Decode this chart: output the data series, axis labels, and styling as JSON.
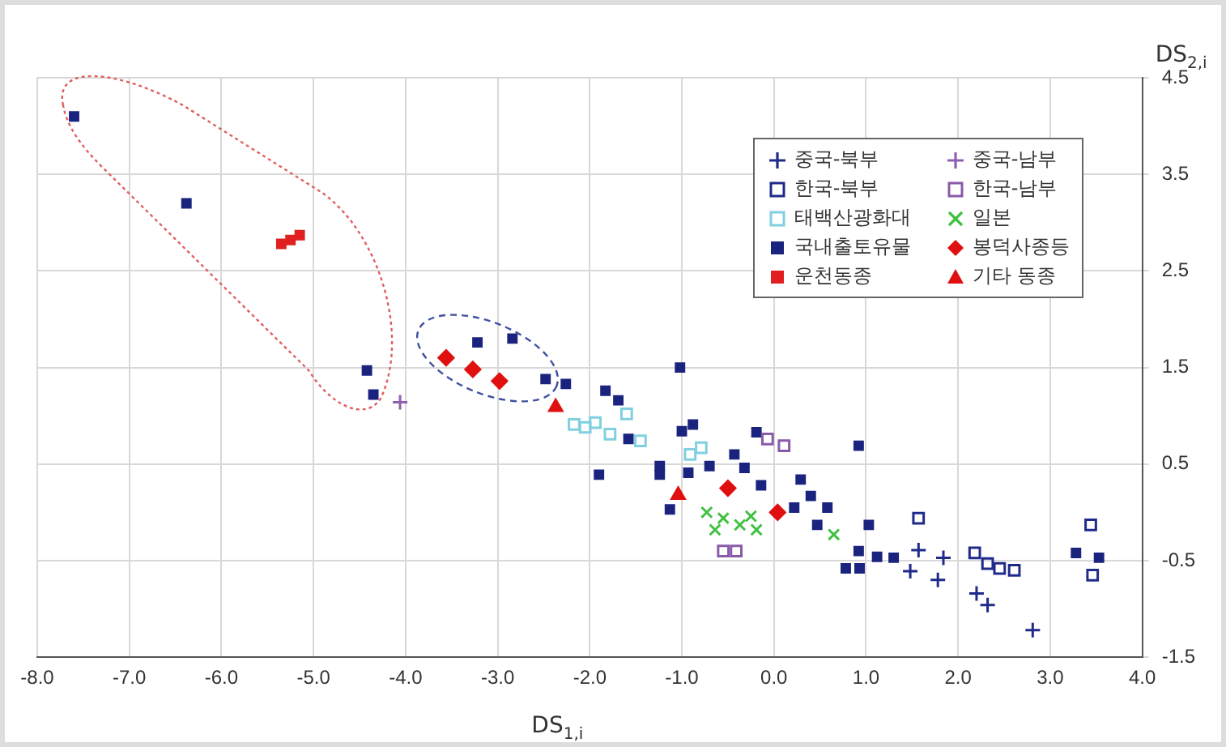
{
  "chart_data": {
    "type": "scatter",
    "xlabel": "DS$_{1,i}$",
    "ylabel": "DS$_{2,i}$",
    "xlim": [
      -8,
      4
    ],
    "xticks": [
      {
        "value": -8,
        "label": "-8.0"
      },
      {
        "value": -7,
        "label": "-7.0"
      },
      {
        "value": -6,
        "label": "-6.0"
      },
      {
        "value": -5,
        "label": "-5.0"
      },
      {
        "value": -4,
        "label": "-4.0"
      },
      {
        "value": -3,
        "label": "-3.0"
      },
      {
        "value": -2,
        "label": "-2.0"
      },
      {
        "value": -1,
        "label": "-1.0"
      },
      {
        "value": 0,
        "label": "0.0"
      },
      {
        "value": 1,
        "label": "1.0"
      },
      {
        "value": 2,
        "label": "2.0"
      },
      {
        "value": 3,
        "label": "3.0"
      },
      {
        "value": 4,
        "label": "4.0"
      }
    ],
    "ylim": [
      -1.5,
      4.5
    ],
    "yticks": [
      4.5,
      3.5,
      2.5,
      1.5,
      0.5,
      -0.5,
      -1.5
    ],
    "grid": true,
    "legend": "top right",
    "series": [
      {
        "name": "중국-북부",
        "color": "#1f2a8a",
        "marker": "cross",
        "x": [
          1.57,
          1.84,
          1.48,
          1.78,
          2.2,
          2.32,
          2.81
        ],
        "values": [
          -0.39,
          -0.47,
          -0.61,
          -0.7,
          -0.84,
          -0.96,
          -1.22
        ]
      },
      {
        "name": "중국-남부",
        "color": "#9060b0",
        "marker": "cross",
        "x": [
          -4.06
        ],
        "values": [
          1.14
        ]
      },
      {
        "name": "한국-북부",
        "color": "#202a8a",
        "marker": "square",
        "x": [
          1.57,
          2.18,
          2.32,
          2.45,
          2.61,
          3.44,
          3.46
        ],
        "values": [
          -0.06,
          -0.42,
          -0.53,
          -0.58,
          -0.6,
          -0.13,
          -0.65
        ]
      },
      {
        "name": "한국-남부",
        "color": "#8a5aa8",
        "marker": "square",
        "x": [
          -0.07,
          0.11,
          -0.55,
          -0.41
        ],
        "values": [
          0.76,
          0.69,
          -0.4,
          -0.4
        ]
      },
      {
        "name": "태백산광화대",
        "color": "#80d0e0",
        "marker": "square",
        "x": [
          -2.17,
          -2.05,
          -1.94,
          -1.78,
          -1.6,
          -1.45,
          -0.91,
          -0.79
        ],
        "values": [
          0.91,
          0.88,
          0.93,
          0.81,
          1.02,
          0.74,
          0.6,
          0.67
        ]
      },
      {
        "name": "일본",
        "color": "#40c040",
        "marker": "x",
        "x": [
          -0.73,
          -0.55,
          -0.37,
          -0.19,
          -0.64,
          -0.25,
          0.65
        ],
        "values": [
          0.0,
          -0.06,
          -0.13,
          -0.18,
          -0.18,
          -0.04,
          -0.23
        ]
      },
      {
        "name": "국내출토유물",
        "color": "#1a237e",
        "x": [
          -7.6,
          -6.38,
          -4.42,
          -4.35,
          -3.22,
          -2.84,
          -2.48,
          -2.26,
          -1.02,
          -1.83,
          -1.69,
          -1.58,
          -1.0,
          -0.88,
          -1.9,
          -1.24,
          -1.24,
          -0.43,
          -0.93,
          -0.19,
          -0.7,
          -0.32,
          -0.14,
          0.29,
          0.4,
          0.58,
          0.22,
          0.47,
          -1.13,
          0.78,
          0.92,
          0.92,
          1.12,
          1.3,
          0.93,
          1.03,
          3.28,
          3.53
        ],
        "values": [
          4.1,
          3.2,
          1.47,
          1.22,
          1.76,
          1.8,
          1.38,
          1.33,
          1.5,
          1.26,
          1.16,
          0.76,
          0.84,
          0.91,
          0.39,
          0.48,
          0.39,
          0.6,
          0.41,
          0.83,
          0.48,
          0.46,
          0.28,
          0.34,
          0.17,
          0.05,
          0.05,
          -0.13,
          0.03,
          -0.58,
          0.69,
          -0.4,
          -0.46,
          -0.47,
          -0.58,
          -0.13,
          -0.42,
          -0.47
        ]
      },
      {
        "name": "봉덕사종등",
        "color": "#e01010",
        "marker": "diamond",
        "x": [
          -3.56,
          -3.27,
          -2.98,
          -0.5,
          0.04
        ],
        "values": [
          1.6,
          1.48,
          1.36,
          0.25,
          0.0
        ]
      },
      {
        "name": "운천동종",
        "color": "#e02020",
        "x": [
          -5.35,
          -5.25,
          -5.15
        ],
        "values": [
          2.78,
          2.82,
          2.87
        ]
      },
      {
        "name": "기타 동종",
        "color": "#e01010",
        "marker": "triangle",
        "x": [
          -2.37,
          -1.04
        ],
        "values": [
          1.09,
          0.18
        ]
      }
    ]
  }
}
